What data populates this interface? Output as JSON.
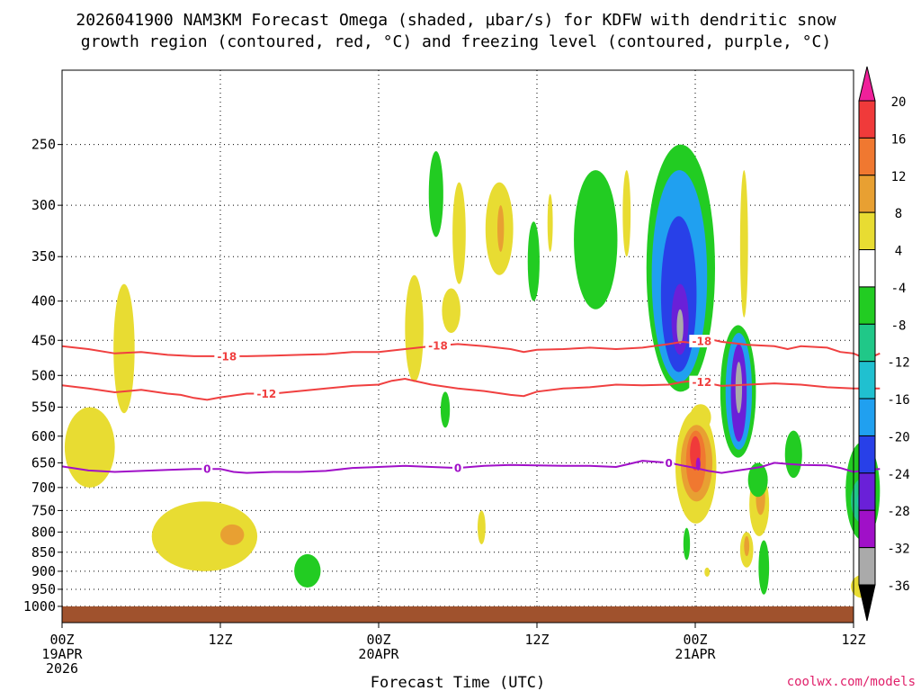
{
  "chart_data": {
    "type": "heatmap",
    "title_line1": "2026041900 NAM3KM Forecast Omega (shaded, µbar/s) for KDFW with dendritic snow",
    "title_line2": "growth region (contoured, red, °C) and freezing level (contoured, purple, °C)",
    "xlabel": "Forecast Time (UTC)",
    "credit": "coolwx.com/models",
    "x_range_hours": [
      0,
      60
    ],
    "y_range_hpa": [
      200,
      1050
    ],
    "y_ticks": [
      {
        "p": 250,
        "label": "250"
      },
      {
        "p": 300,
        "label": "300"
      },
      {
        "p": 350,
        "label": "350"
      },
      {
        "p": 400,
        "label": "400"
      },
      {
        "p": 450,
        "label": "450"
      },
      {
        "p": 500,
        "label": "500"
      },
      {
        "p": 550,
        "label": "550"
      },
      {
        "p": 600,
        "label": "600"
      },
      {
        "p": 650,
        "label": "650"
      },
      {
        "p": 700,
        "label": "700"
      },
      {
        "p": 750,
        "label": "750"
      },
      {
        "p": 800,
        "label": "800"
      },
      {
        "p": 850,
        "label": "850"
      },
      {
        "p": 900,
        "label": "900"
      },
      {
        "p": 950,
        "label": "950"
      },
      {
        "p": 1000,
        "label": "1000"
      }
    ],
    "x_ticks": [
      {
        "h": 0,
        "lines": [
          "00Z",
          "19APR",
          "2026"
        ]
      },
      {
        "h": 12,
        "lines": [
          "12Z"
        ]
      },
      {
        "h": 24,
        "lines": [
          "00Z",
          "20APR"
        ]
      },
      {
        "h": 36,
        "lines": [
          "12Z"
        ]
      },
      {
        "h": 48,
        "lines": [
          "00Z",
          "21APR"
        ]
      },
      {
        "h": 60,
        "lines": [
          "12Z"
        ]
      }
    ],
    "colorbar": {
      "ticks": [
        "20",
        "16",
        "12",
        "8",
        "4",
        "-4",
        "-8",
        "-12",
        "-16",
        "-20",
        "-24",
        "-28",
        "-32",
        "-36"
      ],
      "bins": [
        {
          "lo": 20,
          "hi": 24,
          "color": "#f0209a"
        },
        {
          "lo": 16,
          "hi": 20,
          "color": "#f03a3a"
        },
        {
          "lo": 12,
          "hi": 16,
          "color": "#f07830"
        },
        {
          "lo": 8,
          "hi": 12,
          "color": "#e8a032"
        },
        {
          "lo": 4,
          "hi": 8,
          "color": "#e8dc32"
        },
        {
          "lo": -4,
          "hi": 4,
          "color": "#ffffff"
        },
        {
          "lo": -8,
          "hi": -4,
          "color": "#22cc22"
        },
        {
          "lo": -12,
          "hi": -8,
          "color": "#20c888"
        },
        {
          "lo": -16,
          "hi": -12,
          "color": "#20c0d0"
        },
        {
          "lo": -20,
          "hi": -16,
          "color": "#20a0f0"
        },
        {
          "lo": -24,
          "hi": -20,
          "color": "#2840e8"
        },
        {
          "lo": -28,
          "hi": -24,
          "color": "#6a20d8"
        },
        {
          "lo": -32,
          "hi": -28,
          "color": "#a010c8"
        },
        {
          "lo": -36,
          "hi": -32,
          "color": "#aaaaaa"
        },
        {
          "lo": -40,
          "hi": -36,
          "color": "#000000"
        }
      ]
    },
    "ground_color": "#a0522d",
    "contours": [
      {
        "name": "dgz-minus18",
        "value_label": "-18",
        "color": "#f04040",
        "label_positions_h": [
          12.5,
          28.5,
          48.5
        ],
        "points": [
          [
            0,
            458
          ],
          [
            2,
            462
          ],
          [
            4,
            468
          ],
          [
            6,
            466
          ],
          [
            8,
            470
          ],
          [
            10,
            472
          ],
          [
            12,
            472
          ],
          [
            14,
            472
          ],
          [
            16,
            471
          ],
          [
            18,
            470
          ],
          [
            20,
            469
          ],
          [
            22,
            466
          ],
          [
            24,
            466
          ],
          [
            26,
            462
          ],
          [
            28,
            458
          ],
          [
            30,
            455
          ],
          [
            32,
            458
          ],
          [
            34,
            462
          ],
          [
            35,
            466
          ],
          [
            36,
            463
          ],
          [
            38,
            462
          ],
          [
            40,
            460
          ],
          [
            42,
            462
          ],
          [
            44,
            460
          ],
          [
            46,
            455
          ],
          [
            47,
            452
          ],
          [
            48,
            454
          ],
          [
            49,
            448
          ],
          [
            50,
            452
          ],
          [
            52,
            456
          ],
          [
            54,
            458
          ],
          [
            55,
            462
          ],
          [
            56,
            458
          ],
          [
            58,
            460
          ],
          [
            59,
            466
          ],
          [
            60,
            468
          ],
          [
            61,
            476
          ],
          [
            62,
            468
          ]
        ]
      },
      {
        "name": "dgz-minus12",
        "value_label": "-12",
        "color": "#f04040",
        "label_positions_h": [
          15.5,
          48.5
        ],
        "points": [
          [
            0,
            515
          ],
          [
            2,
            520
          ],
          [
            4,
            526
          ],
          [
            6,
            522
          ],
          [
            8,
            528
          ],
          [
            9,
            530
          ],
          [
            10,
            535
          ],
          [
            11,
            538
          ],
          [
            12,
            534
          ],
          [
            14,
            528
          ],
          [
            16,
            528
          ],
          [
            18,
            524
          ],
          [
            20,
            520
          ],
          [
            22,
            516
          ],
          [
            24,
            514
          ],
          [
            25,
            508
          ],
          [
            26,
            505
          ],
          [
            28,
            514
          ],
          [
            30,
            520
          ],
          [
            32,
            524
          ],
          [
            34,
            530
          ],
          [
            35,
            532
          ],
          [
            36,
            525
          ],
          [
            38,
            520
          ],
          [
            40,
            518
          ],
          [
            42,
            514
          ],
          [
            44,
            515
          ],
          [
            46,
            514
          ],
          [
            47,
            510
          ],
          [
            48,
            508
          ],
          [
            49,
            512
          ],
          [
            50,
            516
          ],
          [
            52,
            514
          ],
          [
            54,
            512
          ],
          [
            56,
            514
          ],
          [
            58,
            518
          ],
          [
            60,
            520
          ],
          [
            62,
            520
          ]
        ]
      },
      {
        "name": "freezing-level",
        "value_label": "0",
        "color": "#a010c8",
        "label_positions_h": [
          11,
          30,
          46
        ],
        "points": [
          [
            0,
            657
          ],
          [
            2,
            665
          ],
          [
            4,
            668
          ],
          [
            6,
            666
          ],
          [
            8,
            664
          ],
          [
            10,
            662
          ],
          [
            12,
            662
          ],
          [
            13,
            668
          ],
          [
            14,
            670
          ],
          [
            16,
            668
          ],
          [
            18,
            668
          ],
          [
            20,
            666
          ],
          [
            22,
            660
          ],
          [
            24,
            658
          ],
          [
            26,
            656
          ],
          [
            28,
            658
          ],
          [
            30,
            660
          ],
          [
            32,
            656
          ],
          [
            34,
            654
          ],
          [
            36,
            655
          ],
          [
            38,
            656
          ],
          [
            40,
            656
          ],
          [
            42,
            658
          ],
          [
            43,
            652
          ],
          [
            44,
            646
          ],
          [
            45,
            648
          ],
          [
            46,
            650
          ],
          [
            47,
            655
          ],
          [
            48,
            660
          ],
          [
            49,
            666
          ],
          [
            50,
            670
          ],
          [
            51,
            666
          ],
          [
            52,
            662
          ],
          [
            53,
            658
          ],
          [
            54,
            650
          ],
          [
            55,
            652
          ],
          [
            56,
            654
          ],
          [
            58,
            655
          ],
          [
            59,
            660
          ],
          [
            60,
            668
          ],
          [
            61,
            664
          ],
          [
            62,
            662
          ]
        ]
      }
    ],
    "blobs": [
      {
        "c": "#e8dc32",
        "x": [
          0.2,
          4.0
        ],
        "p": [
          550,
          700
        ]
      },
      {
        "c": "#e8dc32",
        "x": [
          3.9,
          5.5
        ],
        "p": [
          380,
          560
        ]
      },
      {
        "c": "#e8dc32",
        "x": [
          6.8,
          14.8
        ],
        "p": [
          730,
          900
        ]
      },
      {
        "c": "#e8a032",
        "x": [
          12.0,
          13.8
        ],
        "p": [
          782,
          832
        ]
      },
      {
        "c": "#22cc22",
        "x": [
          17.6,
          19.6
        ],
        "p": [
          855,
          945
        ]
      },
      {
        "c": "#e8dc32",
        "x": [
          26.0,
          27.4
        ],
        "p": [
          370,
          510
        ]
      },
      {
        "c": "#22cc22",
        "x": [
          27.8,
          28.9
        ],
        "p": [
          255,
          330
        ]
      },
      {
        "c": "#e8dc32",
        "x": [
          29.6,
          30.6
        ],
        "p": [
          280,
          380
        ]
      },
      {
        "c": "#e8dc32",
        "x": [
          28.8,
          30.2
        ],
        "p": [
          385,
          440
        ]
      },
      {
        "c": "#22cc22",
        "x": [
          28.7,
          29.4
        ],
        "p": [
          525,
          585
        ]
      },
      {
        "c": "#e8dc32",
        "x": [
          32.1,
          34.2
        ],
        "p": [
          280,
          370
        ]
      },
      {
        "c": "#e8a032",
        "x": [
          33.0,
          33.5
        ],
        "p": [
          300,
          345
        ]
      },
      {
        "c": "#22cc22",
        "x": [
          35.3,
          36.2
        ],
        "p": [
          315,
          400
        ]
      },
      {
        "c": "#e8dc32",
        "x": [
          36.8,
          37.2
        ],
        "p": [
          290,
          345
        ]
      },
      {
        "c": "#e8dc32",
        "x": [
          31.5,
          32.1
        ],
        "p": [
          750,
          830
        ]
      },
      {
        "c": "#22cc22",
        "x": [
          38.8,
          42.1
        ],
        "p": [
          270,
          410
        ]
      },
      {
        "c": "#e8dc32",
        "x": [
          42.5,
          43.1
        ],
        "p": [
          270,
          350
        ]
      },
      {
        "c": "#22cc22",
        "x": [
          44.3,
          49.5
        ],
        "p": [
          250,
          525
        ]
      },
      {
        "c": "#20a0f0",
        "x": [
          44.7,
          48.9
        ],
        "p": [
          270,
          510
        ]
      },
      {
        "c": "#2840e8",
        "x": [
          45.4,
          48.1
        ],
        "p": [
          310,
          495
        ]
      },
      {
        "c": "#6a20d8",
        "x": [
          46.2,
          47.5
        ],
        "p": [
          380,
          470
        ]
      },
      {
        "c": "#aaaaaa",
        "x": [
          46.6,
          47.1
        ],
        "p": [
          410,
          455
        ]
      },
      {
        "c": "#e8dc32",
        "x": [
          47.6,
          49.2
        ],
        "p": [
          545,
          590
        ]
      },
      {
        "c": "#e8dc32",
        "x": [
          51.4,
          52.0
        ],
        "p": [
          270,
          420
        ]
      },
      {
        "c": "#22cc22",
        "x": [
          49.9,
          52.6
        ],
        "p": [
          430,
          640
        ]
      },
      {
        "c": "#20a0f0",
        "x": [
          50.3,
          52.3
        ],
        "p": [
          440,
          625
        ]
      },
      {
        "c": "#6a20d8",
        "x": [
          50.7,
          51.9
        ],
        "p": [
          455,
          610
        ]
      },
      {
        "c": "#aaaaaa",
        "x": [
          51.05,
          51.55
        ],
        "p": [
          480,
          560
        ]
      },
      {
        "c": "#e8dc32",
        "x": [
          46.5,
          49.6
        ],
        "p": [
          555,
          780
        ]
      },
      {
        "c": "#e8a032",
        "x": [
          46.9,
          49.3
        ],
        "p": [
          580,
          730
        ]
      },
      {
        "c": "#f07830",
        "x": [
          47.3,
          48.8
        ],
        "p": [
          590,
          710
        ]
      },
      {
        "c": "#f03a3a",
        "x": [
          47.6,
          48.4
        ],
        "p": [
          600,
          665
        ]
      },
      {
        "c": "#a010c8",
        "x": [
          48.05,
          48.4
        ],
        "p": [
          640,
          665
        ]
      },
      {
        "c": "#e8dc32",
        "x": [
          52.1,
          53.6
        ],
        "p": [
          670,
          810
        ]
      },
      {
        "c": "#e8a032",
        "x": [
          52.6,
          53.3
        ],
        "p": [
          690,
          760
        ]
      },
      {
        "c": "#22cc22",
        "x": [
          52.0,
          53.5
        ],
        "p": [
          650,
          720
        ]
      },
      {
        "c": "#e8dc32",
        "x": [
          51.4,
          52.4
        ],
        "p": [
          800,
          890
        ]
      },
      {
        "c": "#e8a032",
        "x": [
          51.7,
          52.1
        ],
        "p": [
          810,
          860
        ]
      },
      {
        "c": "#22cc22",
        "x": [
          52.8,
          53.6
        ],
        "p": [
          820,
          965
        ]
      },
      {
        "c": "#22cc22",
        "x": [
          47.1,
          47.6
        ],
        "p": [
          790,
          870
        ]
      },
      {
        "c": "#e8dc32",
        "x": [
          48.7,
          49.1
        ],
        "p": [
          890,
          915
        ]
      },
      {
        "c": "#22cc22",
        "x": [
          54.8,
          56.1
        ],
        "p": [
          590,
          680
        ]
      },
      {
        "c": "#22cc22",
        "x": [
          59.4,
          62.0
        ],
        "p": [
          610,
          820
        ]
      },
      {
        "c": "#20c888",
        "x": [
          59.8,
          61.7
        ],
        "p": [
          680,
          780
        ]
      },
      {
        "c": "#20c0d0",
        "x": [
          60.3,
          61.2
        ],
        "p": [
          700,
          760
        ]
      },
      {
        "c": "#e8dc32",
        "x": [
          59.8,
          61.5
        ],
        "p": [
          910,
          975
        ]
      },
      {
        "c": "#e8a032",
        "x": [
          60.4,
          60.8
        ],
        "p": [
          935,
          955
        ]
      },
      {
        "c": "#e8dc32",
        "x": [
          60.8,
          61.2
        ],
        "p": [
          525,
          580
        ]
      }
    ]
  }
}
